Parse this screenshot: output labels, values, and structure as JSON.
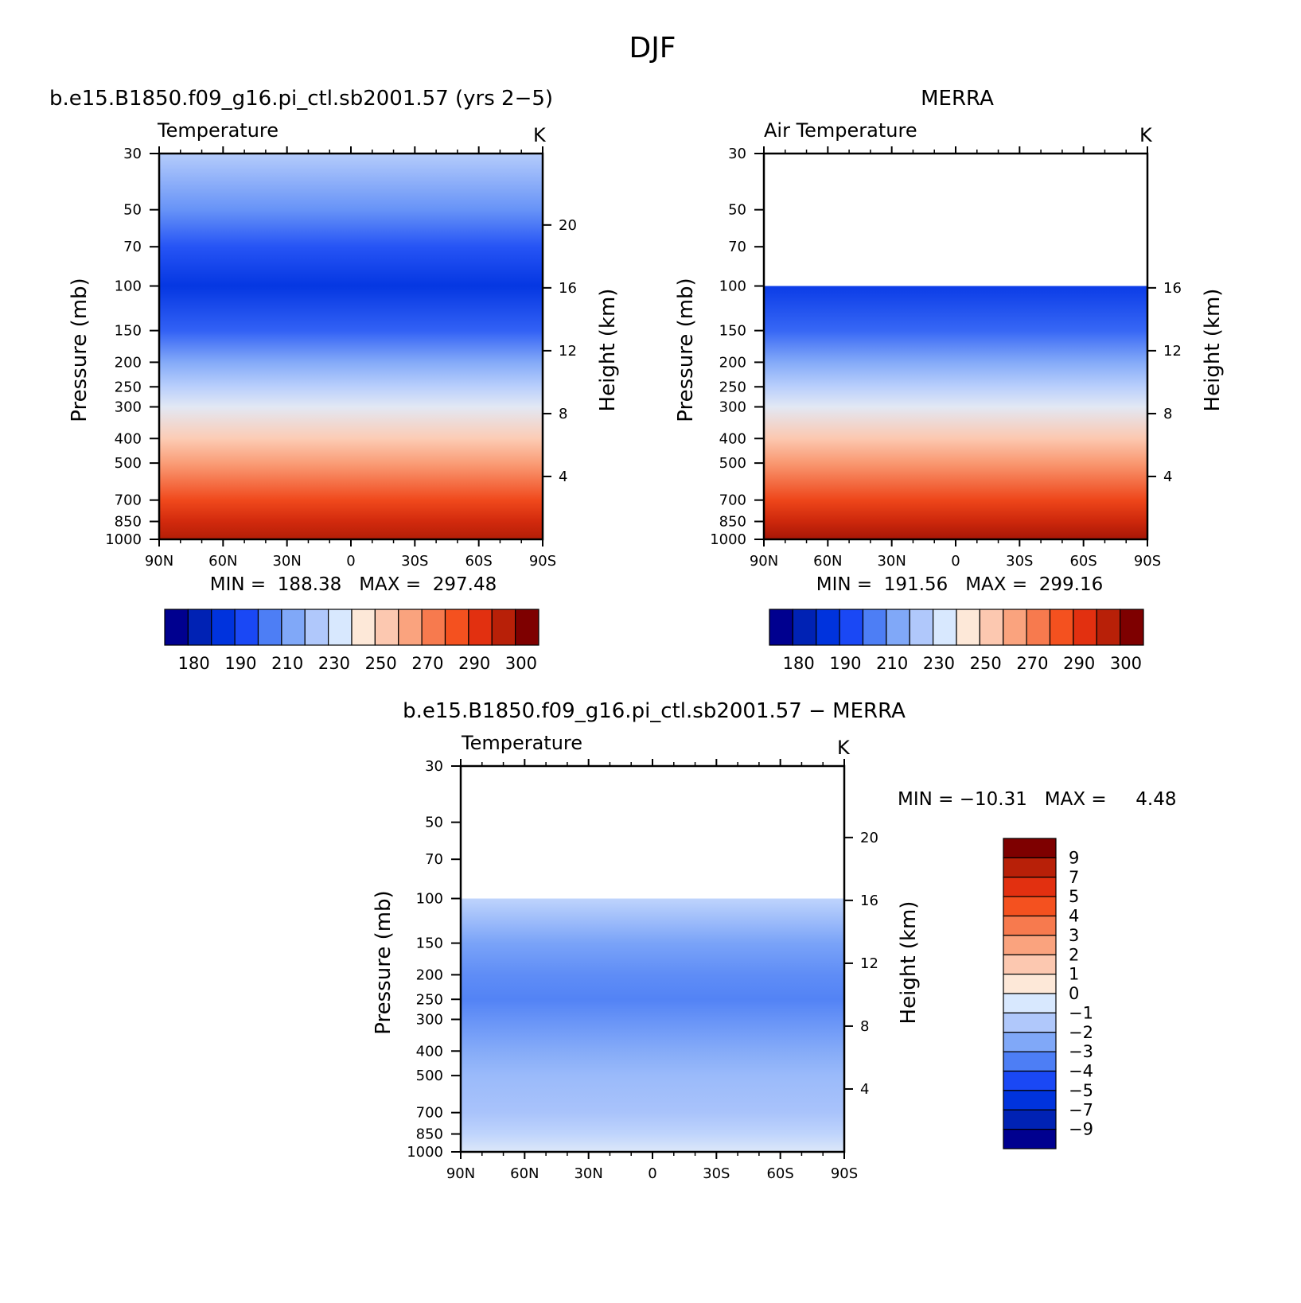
{
  "figure_title": "DJF",
  "chart_data": [
    {
      "type": "heatmap",
      "title": "b.e15.B1850.f09_g16.pi_ctl.sb2001.57 (yrs 2−5)",
      "subtitle_left": "Temperature",
      "units": "K",
      "xlabel": "",
      "ylabel": "Pressure (mb)",
      "y2label": "Height (km)",
      "x_ticks": [
        "90N",
        "60N",
        "30N",
        "0",
        "30S",
        "60S",
        "90S"
      ],
      "y_ticks": [
        "30",
        "50",
        "70",
        "100",
        "150",
        "200",
        "250",
        "300",
        "400",
        "500",
        "700",
        "850",
        "1000"
      ],
      "y2_ticks": [
        "4",
        "8",
        "12",
        "16",
        "20"
      ],
      "stats": "MIN =  188.38   MAX =  297.48",
      "colorbar_labels": [
        "180",
        "190",
        "210",
        "230",
        "250",
        "270",
        "290",
        "300"
      ],
      "top_level_mb": 30,
      "profile": [
        {
          "p": 30,
          "T": 228
        },
        {
          "p": 50,
          "T": 214
        },
        {
          "p": 70,
          "T": 203
        },
        {
          "p": 100,
          "T": 194
        },
        {
          "p": 150,
          "T": 205
        },
        {
          "p": 200,
          "T": 219
        },
        {
          "p": 250,
          "T": 229
        },
        {
          "p": 300,
          "T": 238
        },
        {
          "p": 400,
          "T": 252
        },
        {
          "p": 500,
          "T": 263
        },
        {
          "p": 700,
          "T": 281
        },
        {
          "p": 850,
          "T": 291
        },
        {
          "p": 1000,
          "T": 297
        }
      ]
    },
    {
      "type": "heatmap",
      "title": "MERRA",
      "subtitle_left": "Air Temperature",
      "units": "K",
      "xlabel": "",
      "ylabel": "Pressure (mb)",
      "y2label": "Height (km)",
      "x_ticks": [
        "90N",
        "60N",
        "30N",
        "0",
        "30S",
        "60S",
        "90S"
      ],
      "y_ticks": [
        "30",
        "50",
        "70",
        "100",
        "150",
        "200",
        "250",
        "300",
        "400",
        "500",
        "700",
        "850",
        "1000"
      ],
      "y2_ticks": [
        "4",
        "8",
        "12",
        "16"
      ],
      "stats": "MIN =  191.56   MAX =  299.16",
      "colorbar_labels": [
        "180",
        "190",
        "210",
        "230",
        "250",
        "270",
        "290",
        "300"
      ],
      "top_level_mb": 100,
      "profile": [
        {
          "p": 100,
          "T": 196
        },
        {
          "p": 150,
          "T": 206
        },
        {
          "p": 200,
          "T": 219
        },
        {
          "p": 250,
          "T": 229
        },
        {
          "p": 300,
          "T": 238
        },
        {
          "p": 400,
          "T": 253
        },
        {
          "p": 500,
          "T": 264
        },
        {
          "p": 700,
          "T": 282
        },
        {
          "p": 850,
          "T": 292
        },
        {
          "p": 1000,
          "T": 299
        }
      ]
    },
    {
      "type": "heatmap",
      "title": "b.e15.B1850.f09_g16.pi_ctl.sb2001.57 − MERRA",
      "subtitle_left": "Temperature",
      "units": "K",
      "xlabel": "",
      "ylabel": "Pressure (mb)",
      "y2label": "Height (km)",
      "x_ticks": [
        "90N",
        "60N",
        "30N",
        "0",
        "30S",
        "60S",
        "90S"
      ],
      "y_ticks": [
        "30",
        "50",
        "70",
        "100",
        "150",
        "200",
        "250",
        "300",
        "400",
        "500",
        "700",
        "850",
        "1000"
      ],
      "y2_ticks": [
        "4",
        "8",
        "12",
        "16",
        "20"
      ],
      "stats": "MIN = −10.31   MAX =     4.48",
      "colorbar_labels": [
        "9",
        "7",
        "5",
        "4",
        "3",
        "2",
        "1",
        "0",
        "−1",
        "−2",
        "−3",
        "−4",
        "−5",
        "−7",
        "−9"
      ],
      "top_level_mb": 100,
      "profile": [
        {
          "p": 100,
          "T": -1.5
        },
        {
          "p": 150,
          "T": -3.5
        },
        {
          "p": 200,
          "T": -4.2
        },
        {
          "p": 250,
          "T": -4.5
        },
        {
          "p": 300,
          "T": -4.0
        },
        {
          "p": 400,
          "T": -3.2
        },
        {
          "p": 500,
          "T": -2.6
        },
        {
          "p": 700,
          "T": -2.2
        },
        {
          "p": 850,
          "T": -1.5
        },
        {
          "p": 1000,
          "T": -0.5
        }
      ]
    }
  ],
  "colors": {
    "abs_palette": [
      "#00008f",
      "#0022b4",
      "#0033dd",
      "#1a48f5",
      "#4d7ef5",
      "#80a8f8",
      "#b0c8fb",
      "#d8e8fe",
      "#fde8d8",
      "#fcc8b0",
      "#faa37e",
      "#f77a4e",
      "#f4511f",
      "#e23010",
      "#b82008",
      "#7e0000"
    ],
    "diff_palette": [
      "#00008f",
      "#0022b4",
      "#0033dd",
      "#1a48f5",
      "#4d7ef5",
      "#80a8f8",
      "#b0c8fb",
      "#d8e8fe",
      "#fde8d8",
      "#fcc8b0",
      "#faa37e",
      "#f77a4e",
      "#f4511f",
      "#e23010",
      "#b82008",
      "#7e0000"
    ]
  }
}
